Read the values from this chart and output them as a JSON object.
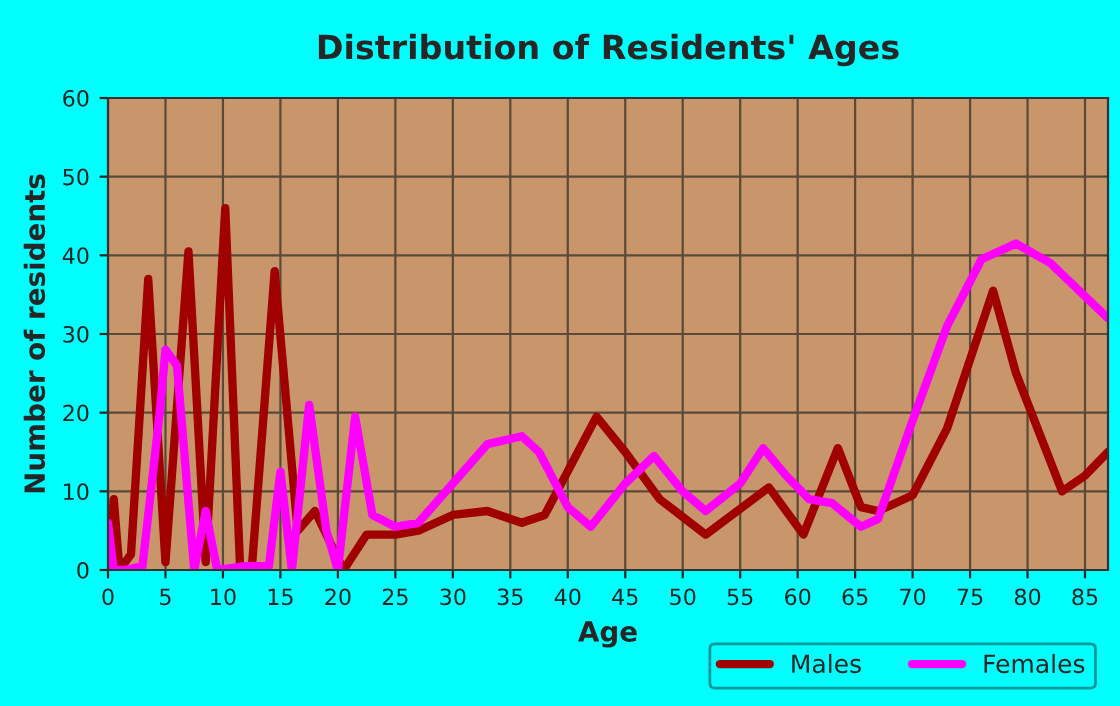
{
  "chart_data": {
    "type": "line",
    "title": "Distribution of Residents' Ages",
    "xlabel": "Age",
    "ylabel": "Number of residents",
    "xlim": [
      0,
      87
    ],
    "xticks": [
      0,
      5,
      10,
      15,
      20,
      25,
      30,
      35,
      40,
      45,
      50,
      55,
      60,
      65,
      70,
      75,
      80,
      85
    ],
    "ylim": [
      0,
      60
    ],
    "yticks": [
      0,
      10,
      20,
      30,
      40,
      50,
      60
    ],
    "grid": true,
    "legend": "bottom right",
    "line_style": "solid",
    "series": [
      {
        "name": "Males",
        "color": "#a00000",
        "x": [
          0,
          0.5,
          1,
          2,
          3.5,
          5,
          7,
          8.5,
          10.2,
          11.5,
          12.5,
          14.5,
          16.5,
          18,
          20.5,
          22.5,
          25,
          27,
          30,
          33,
          36,
          38,
          42.5,
          45,
          48,
          52,
          57.5,
          60.5,
          63.5,
          65.5,
          67,
          70,
          73,
          77,
          79,
          83,
          85,
          87
        ],
        "values": [
          0,
          9,
          0,
          2,
          37,
          1,
          40.5,
          1,
          46,
          0,
          0,
          38,
          5,
          7.5,
          0,
          4.5,
          4.5,
          5,
          7,
          7.5,
          6,
          7,
          19.5,
          15,
          9,
          4.5,
          10.5,
          4.5,
          15.5,
          8,
          7.5,
          9.5,
          18,
          35.5,
          25,
          10,
          12,
          15
        ]
      },
      {
        "name": "Females",
        "color": "#ff00ff",
        "x": [
          0,
          0.5,
          1.5,
          3,
          4.5,
          5,
          6,
          7.5,
          8.5,
          9.5,
          12,
          14,
          15,
          16,
          17.5,
          19,
          20,
          21.5,
          23,
          25,
          27,
          30,
          33,
          36,
          37.5,
          40,
          42,
          45,
          47.5,
          50,
          52,
          55,
          57,
          59,
          61,
          63,
          65.5,
          67,
          70,
          73,
          76,
          79,
          82,
          87
        ],
        "values": [
          6,
          0,
          0,
          0.5,
          20,
          28,
          26,
          0,
          7.5,
          0,
          0.5,
          0.5,
          12.5,
          0,
          21,
          5,
          0,
          19.5,
          7,
          5.5,
          6,
          11,
          16,
          17,
          15,
          8,
          5.5,
          11,
          14.5,
          10,
          7.5,
          11,
          15.5,
          12,
          9,
          8.5,
          5.5,
          6.5,
          19,
          31,
          39.5,
          41.5,
          39,
          32
        ]
      }
    ]
  }
}
